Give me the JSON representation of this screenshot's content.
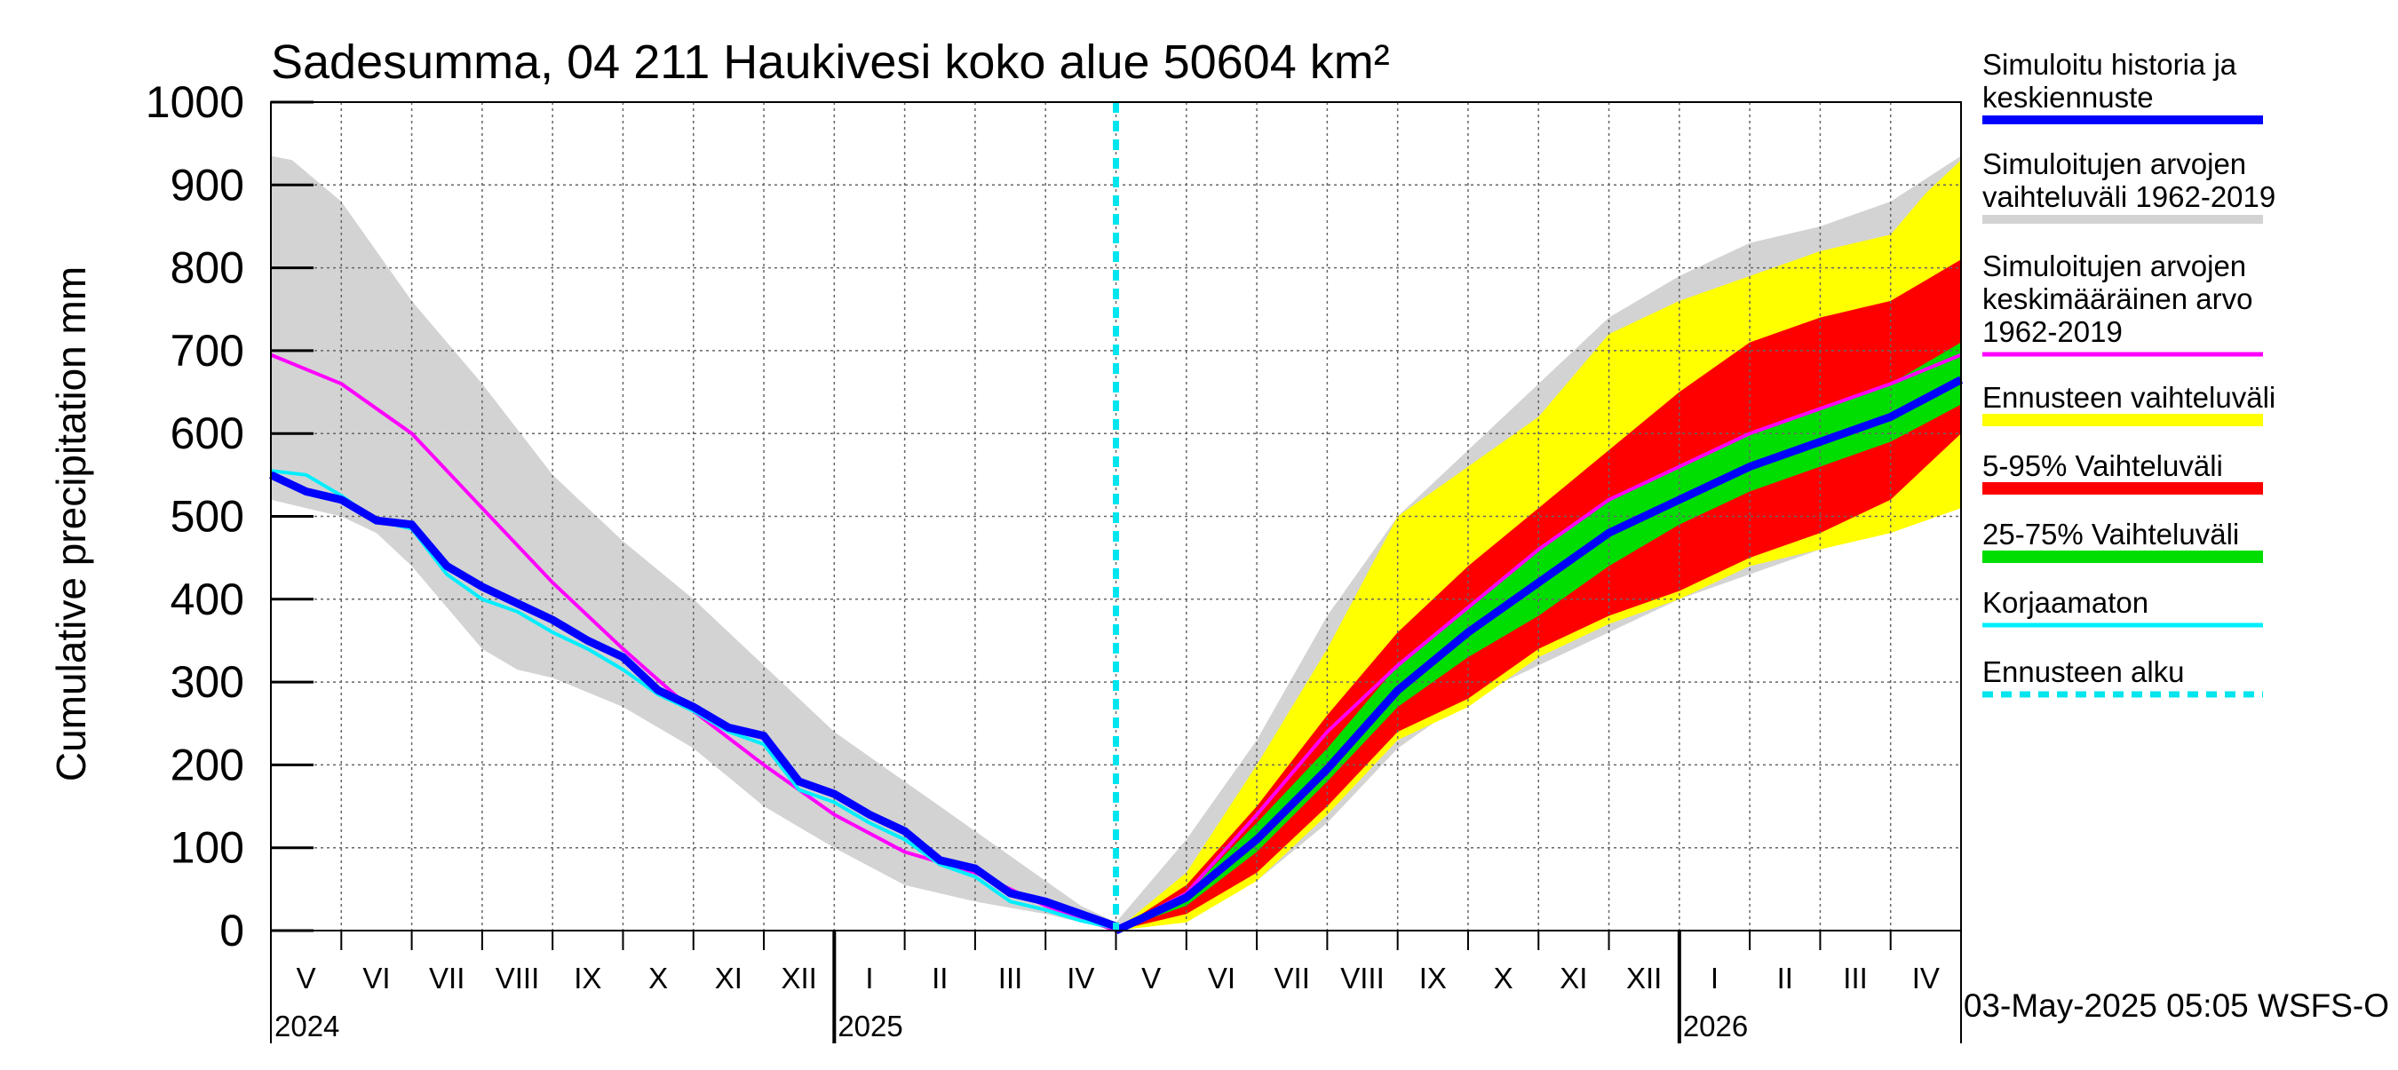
{
  "chart_data": {
    "type": "area",
    "title": "Sadesumma, 04 211 Haukivesi koko alue 50604 km²",
    "ylabel": "Cumulative precipitation   mm",
    "ylim": [
      0,
      1000
    ],
    "yticks": [
      0,
      100,
      200,
      300,
      400,
      500,
      600,
      700,
      800,
      900,
      1000
    ],
    "x_range_months": [
      0,
      24
    ],
    "forecast_start_month": 12,
    "month_labels": [
      "V",
      "VI",
      "VII",
      "VIII",
      "IX",
      "X",
      "XI",
      "XII",
      "I",
      "II",
      "III",
      "IV",
      "V",
      "VI",
      "VII",
      "VIII",
      "IX",
      "X",
      "XI",
      "XII",
      "I",
      "II",
      "III",
      "IV"
    ],
    "year_labels": [
      {
        "label": "2024",
        "month": 0
      },
      {
        "label": "2025",
        "month": 8
      },
      {
        "label": "2026",
        "month": 20
      }
    ],
    "footer": "03-May-2025 05:05 WSFS-O",
    "colors": {
      "history": "#0000ff",
      "hist_range": "#d3d3d3",
      "mean": "#ff00ff",
      "fc_range": "#ffff00",
      "p5_95": "#ff0000",
      "p25_75": "#00dd00",
      "uncorrected": "#00eeff",
      "forecast_start": "#00e5ee",
      "grid": "#666666"
    },
    "series": {
      "hist_range_upper": {
        "x": [
          0,
          0.3,
          1,
          2,
          3,
          4,
          5,
          6,
          7,
          8,
          9,
          10,
          11,
          11.5,
          12,
          13,
          14,
          15,
          16,
          17,
          18,
          19,
          20,
          21,
          22,
          23,
          24
        ],
        "y": [
          935,
          930,
          880,
          760,
          660,
          550,
          470,
          400,
          320,
          240,
          180,
          120,
          60,
          30,
          10,
          110,
          230,
          380,
          500,
          580,
          660,
          740,
          790,
          830,
          850,
          880,
          935
        ]
      },
      "hist_range_lower": {
        "x": [
          0,
          0.5,
          1,
          1.5,
          2,
          3,
          3.5,
          4,
          5,
          6,
          7,
          8,
          9,
          10,
          11,
          12,
          13,
          14,
          15,
          16,
          17,
          18,
          19,
          20,
          21,
          22,
          23,
          24
        ],
        "y": [
          520,
          510,
          500,
          480,
          440,
          340,
          315,
          305,
          270,
          220,
          150,
          100,
          55,
          35,
          20,
          0,
          20,
          60,
          130,
          220,
          280,
          320,
          360,
          400,
          430,
          460,
          490,
          520
        ]
      },
      "mean": {
        "x": [
          0,
          1,
          2,
          3,
          4,
          5,
          6,
          7,
          8,
          9,
          10,
          11,
          12,
          13,
          14,
          15,
          16,
          17,
          18,
          19,
          20,
          21,
          22,
          23,
          24
        ],
        "y": [
          695,
          660,
          600,
          510,
          420,
          340,
          265,
          200,
          140,
          95,
          70,
          30,
          0,
          45,
          140,
          240,
          320,
          390,
          460,
          520,
          560,
          600,
          630,
          660,
          695
        ]
      },
      "history": {
        "x": [
          0,
          0.5,
          1,
          1.5,
          2,
          2.5,
          3,
          3.5,
          4,
          4.5,
          5,
          5.5,
          6,
          6.5,
          7,
          7.5,
          8,
          8.5,
          9,
          9.5,
          10,
          10.5,
          11,
          11.5,
          12
        ],
        "y": [
          550,
          530,
          520,
          495,
          490,
          440,
          415,
          395,
          375,
          350,
          330,
          290,
          270,
          245,
          235,
          180,
          165,
          140,
          120,
          85,
          75,
          45,
          35,
          20,
          5
        ]
      },
      "uncorrected": {
        "x": [
          0,
          0.5,
          1,
          1.5,
          2,
          2.5,
          3,
          3.5,
          4,
          4.5,
          5,
          5.5,
          6,
          6.5,
          7,
          7.5,
          8,
          8.5,
          9,
          9.5,
          10,
          10.5,
          11,
          11.5,
          12
        ],
        "y": [
          555,
          550,
          525,
          495,
          485,
          430,
          400,
          385,
          360,
          340,
          315,
          285,
          265,
          240,
          225,
          170,
          155,
          130,
          110,
          80,
          65,
          35,
          25,
          12,
          3
        ]
      },
      "fc_range_upper": {
        "x": [
          12,
          13,
          14,
          15,
          16,
          17,
          18,
          19,
          20,
          21,
          22,
          23,
          23.5,
          24
        ],
        "y": [
          0,
          70,
          200,
          340,
          500,
          560,
          620,
          720,
          760,
          790,
          820,
          840,
          890,
          930
        ]
      },
      "fc_range_lower": {
        "x": [
          12,
          13,
          14,
          15,
          16,
          17,
          18,
          19,
          20,
          21,
          22,
          23,
          24
        ],
        "y": [
          0,
          10,
          60,
          140,
          230,
          270,
          330,
          370,
          400,
          440,
          460,
          480,
          510
        ]
      },
      "p95": {
        "x": [
          12,
          13,
          14,
          15,
          16,
          17,
          18,
          19,
          20,
          21,
          22,
          23,
          24
        ],
        "y": [
          0,
          55,
          150,
          260,
          360,
          440,
          510,
          580,
          650,
          710,
          740,
          760,
          810
        ]
      },
      "p5": {
        "x": [
          12,
          13,
          14,
          15,
          16,
          17,
          18,
          19,
          20,
          21,
          22,
          23,
          24
        ],
        "y": [
          0,
          20,
          70,
          150,
          240,
          280,
          340,
          380,
          410,
          450,
          480,
          520,
          600
        ]
      },
      "p75": {
        "x": [
          12,
          13,
          14,
          15,
          16,
          17,
          18,
          19,
          20,
          21,
          22,
          23,
          24
        ],
        "y": [
          0,
          45,
          130,
          220,
          320,
          390,
          460,
          520,
          560,
          600,
          630,
          660,
          710
        ]
      },
      "p25": {
        "x": [
          12,
          13,
          14,
          15,
          16,
          17,
          18,
          19,
          20,
          21,
          22,
          23,
          24
        ],
        "y": [
          0,
          30,
          95,
          180,
          270,
          330,
          380,
          440,
          490,
          530,
          560,
          590,
          635
        ]
      },
      "median": {
        "x": [
          12,
          13,
          14,
          15,
          16,
          17,
          18,
          19,
          20,
          21,
          22,
          23,
          24
        ],
        "y": [
          0,
          40,
          110,
          195,
          290,
          360,
          420,
          480,
          520,
          560,
          590,
          620,
          665
        ]
      }
    },
    "legend": [
      {
        "label": "Simuloitu historia ja keskiennuste",
        "lines": [
          "Simuloitu historia ja",
          "keskiennuste"
        ],
        "color": "#0000ff",
        "style": "thick"
      },
      {
        "label": "Simuloitujen arvojen vaihteluväli 1962-2019",
        "lines": [
          "Simuloitujen arvojen",
          "vaihteluväli 1962-2019"
        ],
        "color": "#d3d3d3",
        "style": "thick"
      },
      {
        "label": "Simuloitujen arvojen keskimääräinen arvo 1962-2019",
        "lines": [
          "Simuloitujen arvojen",
          "keskimääräinen arvo",
          "   1962-2019"
        ],
        "color": "#ff00ff",
        "style": "thin"
      },
      {
        "label": "Ennusteen vaihteluväli",
        "lines": [
          "Ennusteen vaihteluväli"
        ],
        "color": "#ffff00",
        "style": "band"
      },
      {
        "label": "5-95% Vaihteluväli",
        "lines": [
          "5-95% Vaihteluväli"
        ],
        "color": "#ff0000",
        "style": "band"
      },
      {
        "label": "25-75% Vaihteluväli",
        "lines": [
          "25-75% Vaihteluväli"
        ],
        "color": "#00dd00",
        "style": "band"
      },
      {
        "label": "Korjaamaton",
        "lines": [
          "Korjaamaton"
        ],
        "color": "#00eeff",
        "style": "thin"
      },
      {
        "label": "Ennusteen alku",
        "lines": [
          "Ennusteen alku"
        ],
        "color": "#00e5ee",
        "style": "dashed"
      }
    ]
  }
}
